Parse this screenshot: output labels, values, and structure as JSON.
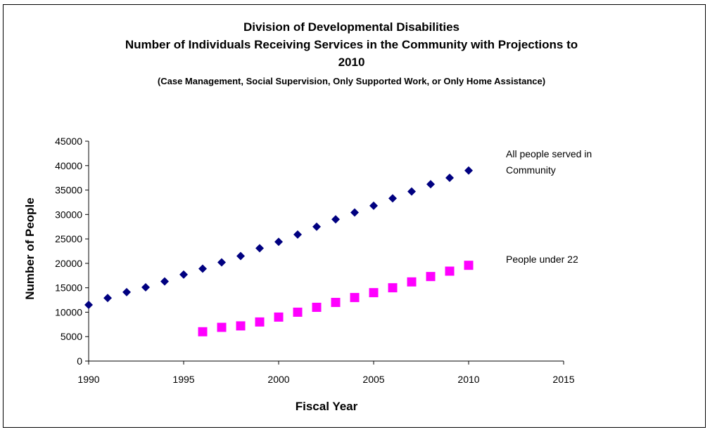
{
  "chart_data": {
    "type": "scatter",
    "title_line1": "Division of Developmental Disabilities",
    "title_line2": "Number of Individuals Receiving Services in the Community with Projections to",
    "title_line3": "2010",
    "subtitle": "(Case Management, Social Supervision, Only Supported Work, or Only Home Assistance)",
    "xlabel": "Fiscal Year",
    "ylabel": "Number of People",
    "xlim": [
      1990,
      2015
    ],
    "ylim": [
      0,
      45000
    ],
    "x_ticks": [
      1990,
      1995,
      2000,
      2005,
      2010,
      2015
    ],
    "y_ticks": [
      0,
      5000,
      10000,
      15000,
      20000,
      25000,
      30000,
      35000,
      40000,
      45000
    ],
    "grid": false,
    "series": [
      {
        "label_line1": "All people served in",
        "label_line2": "Community",
        "marker": "diamond",
        "color": "#000080",
        "x": [
          1990,
          1991,
          1992,
          1993,
          1994,
          1995,
          1996,
          1997,
          1998,
          1999,
          2000,
          2001,
          2002,
          2003,
          2004,
          2005,
          2006,
          2007,
          2008,
          2009,
          2010
        ],
        "y": [
          11500,
          12900,
          14100,
          15100,
          16300,
          17700,
          18900,
          20200,
          21500,
          23100,
          24400,
          25900,
          27500,
          29000,
          30400,
          31800,
          33300,
          34700,
          36200,
          37500,
          39000
        ]
      },
      {
        "label_line1": "People under 22",
        "label_line2": "",
        "marker": "square",
        "color": "#ff00ff",
        "x": [
          1996,
          1997,
          1998,
          1999,
          2000,
          2001,
          2002,
          2003,
          2004,
          2005,
          2006,
          2007,
          2008,
          2009,
          2010
        ],
        "y": [
          6000,
          6900,
          7200,
          8000,
          9000,
          10000,
          11000,
          12000,
          13000,
          14000,
          15000,
          16200,
          17300,
          18400,
          19600
        ]
      }
    ]
  }
}
